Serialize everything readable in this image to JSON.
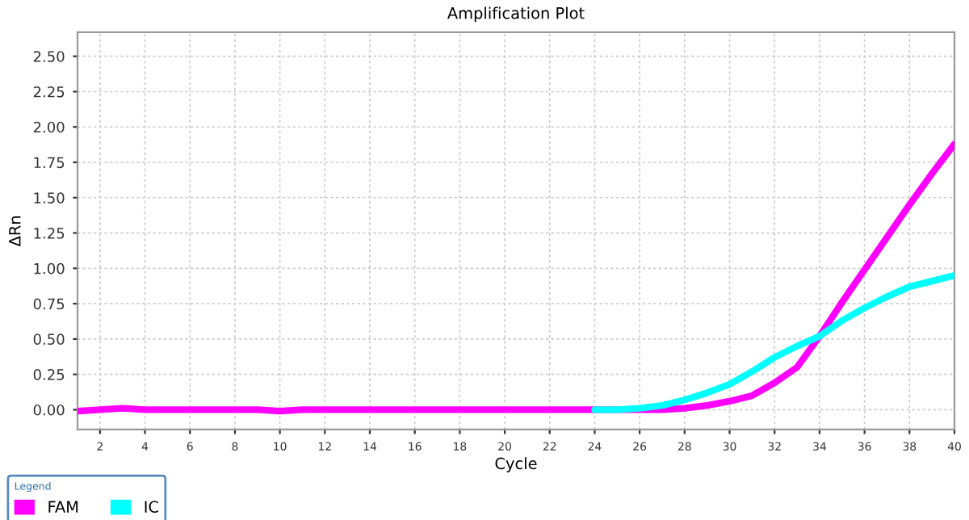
{
  "chart_data": {
    "type": "line",
    "title": "Amplification Plot",
    "xlabel": "Cycle",
    "ylabel": "ΔRn",
    "legend_title": "Legend",
    "legend": "bottom left",
    "grid": true,
    "line_style": "solid",
    "marker": "none",
    "xlim": [
      1,
      40
    ],
    "xticks": [
      2,
      4,
      6,
      8,
      10,
      12,
      14,
      16,
      18,
      20,
      22,
      24,
      26,
      28,
      30,
      32,
      34,
      36,
      38,
      40
    ],
    "ylim": [
      -0.14,
      2.67
    ],
    "yticks": [
      {
        "value": 0,
        "label": "0.00"
      },
      {
        "value": 0.25,
        "label": "0.25"
      },
      {
        "value": 0.5,
        "label": "0.50"
      },
      {
        "value": 0.75,
        "label": "0.75"
      },
      {
        "value": 1,
        "label": "1.00"
      },
      {
        "value": 1.25,
        "label": "1.25"
      },
      {
        "value": 1.5,
        "label": "1.50"
      },
      {
        "value": 1.75,
        "label": "1.75"
      },
      {
        "value": 2,
        "label": "2.00"
      },
      {
        "value": 2.25,
        "label": "2.25"
      },
      {
        "value": 2.5,
        "label": "2.50"
      }
    ],
    "series": [
      {
        "name": "FAM",
        "color": "#ff00ff",
        "x": [
          1,
          2,
          3,
          4,
          5,
          6,
          7,
          8,
          9,
          10,
          11,
          12,
          13,
          14,
          15,
          16,
          17,
          18,
          19,
          20,
          21,
          22,
          23,
          24,
          25,
          26,
          27,
          28,
          29,
          30,
          31,
          32,
          33,
          34,
          35,
          36,
          37,
          38,
          39,
          40
        ],
        "values": [
          -0.01,
          0,
          0.01,
          0,
          0,
          0,
          0,
          0,
          0,
          -0.01,
          0,
          0,
          0,
          0,
          0,
          0,
          0,
          0,
          0,
          0,
          0,
          0,
          0,
          0,
          0,
          0,
          0,
          0.01,
          0.03,
          0.06,
          0.1,
          0.19,
          0.3,
          0.52,
          0.76,
          0.99,
          1.22,
          1.45,
          1.67,
          1.88
        ]
      },
      {
        "name": "IC",
        "color": "#00ffff",
        "x": [
          24,
          25,
          26,
          27,
          28,
          29,
          30,
          31,
          32,
          33,
          34,
          35,
          36,
          37,
          38,
          39,
          40
        ],
        "values": [
          0,
          0,
          0.01,
          0.03,
          0.07,
          0.12,
          0.18,
          0.27,
          0.37,
          0.45,
          0.52,
          0.63,
          0.72,
          0.8,
          0.87,
          0.91,
          0.95
        ]
      }
    ]
  }
}
